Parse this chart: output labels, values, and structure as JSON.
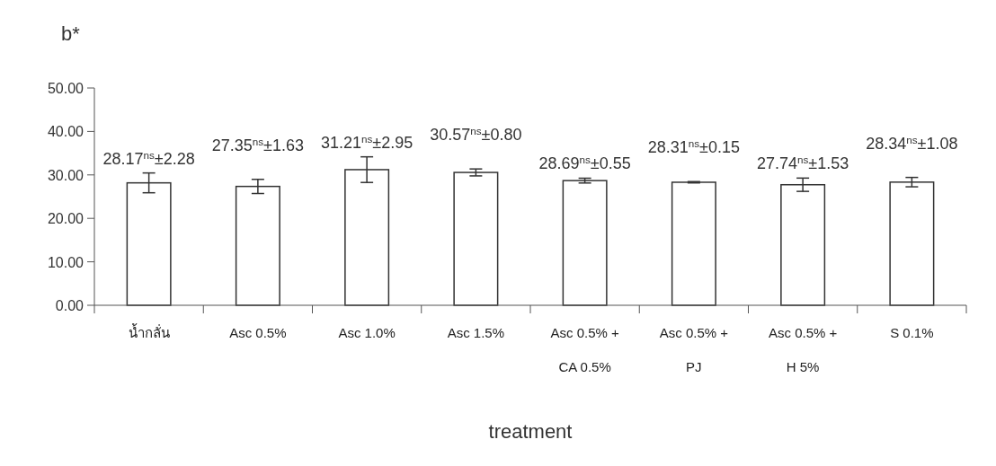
{
  "chart_data": {
    "type": "bar",
    "ylabel": "b*",
    "xlabel": "treatment",
    "categories": [
      "น้ำกลั่น",
      "Asc 0.5%",
      "Asc 1.0%",
      "Asc 1.5%",
      "Asc 0.5% +\nCA 0.5%",
      "Asc 0.5% +\nPJ",
      "Asc 0.5% +\nH 5%",
      "S 0.1%"
    ],
    "values": [
      28.17,
      27.35,
      31.21,
      30.57,
      28.69,
      28.31,
      27.74,
      28.34
    ],
    "errors": [
      2.28,
      1.63,
      2.95,
      0.8,
      0.55,
      0.15,
      1.53,
      1.08
    ],
    "value_labels": [
      "28.17$^{ns}$±2.28",
      "27.35$^{ns}$±1.63",
      "31.21$^{ns}$±2.95",
      "30.57$^{ns}$±0.80",
      "28.69$^{ns}$±0.55",
      "28.31$^{ns}$±0.15",
      "27.74$^{ns}$±1.53",
      "28.34$^{ns}$±1.08"
    ],
    "color": "#ffffff",
    "ylim": [
      0,
      50
    ],
    "yticks": [
      {
        "value": 0,
        "label": "0.00"
      },
      {
        "value": 10,
        "label": "10.00"
      },
      {
        "value": 20,
        "label": "20.00"
      },
      {
        "value": 30,
        "label": "30.00"
      },
      {
        "value": 40,
        "label": "40.00"
      },
      {
        "value": 50,
        "label": "50.00"
      }
    ]
  }
}
